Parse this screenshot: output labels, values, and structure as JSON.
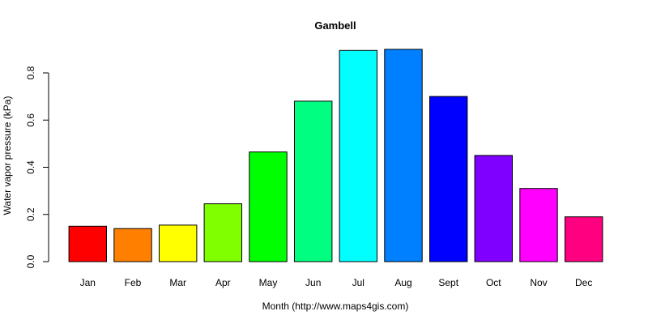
{
  "chart_data": {
    "type": "bar",
    "title": "Gambell",
    "xlabel": "Month (http://www.maps4gis.com)",
    "ylabel": "Water vapor pressure (kPa)",
    "categories": [
      "Jan",
      "Feb",
      "Mar",
      "Apr",
      "May",
      "Jun",
      "Jul",
      "Aug",
      "Sept",
      "Oct",
      "Nov",
      "Dec"
    ],
    "values": [
      0.15,
      0.14,
      0.155,
      0.245,
      0.465,
      0.68,
      0.895,
      0.9,
      0.7,
      0.45,
      0.31,
      0.19
    ],
    "colors": [
      "#ff0000",
      "#ff8000",
      "#ffff00",
      "#80ff00",
      "#00ff00",
      "#00ff80",
      "#00ffff",
      "#0080ff",
      "#0000ff",
      "#8000ff",
      "#ff00ff",
      "#ff0080"
    ],
    "ylim": [
      0,
      0.8
    ],
    "yticks": [
      "0.0",
      "0.2",
      "0.4",
      "0.6",
      "0.8"
    ],
    "grid": false,
    "legend": "none"
  }
}
